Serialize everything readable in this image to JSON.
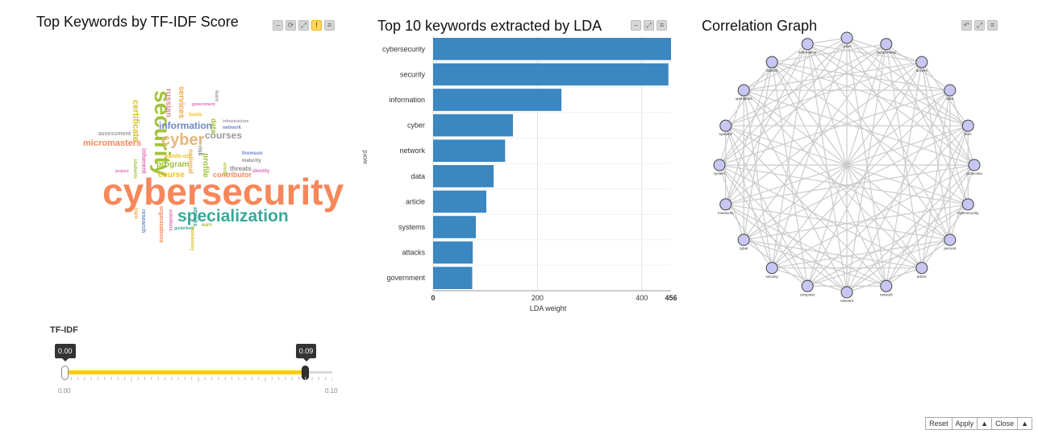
{
  "wordcloud_panel": {
    "title": "Top Keywords by TF-IDF Score",
    "words": [
      {
        "text": "cybersecurity",
        "color": "#f6875a"
      },
      {
        "text": "specialization",
        "color": "#3aa89a"
      },
      {
        "text": "security",
        "color": "#a2c23a"
      },
      {
        "text": "cyber",
        "color": "#e3b87c"
      },
      {
        "text": "information",
        "color": "#6f87c6"
      },
      {
        "text": "courses",
        "color": "#9a9a9a"
      },
      {
        "text": "micromasters",
        "color": "#f6875a"
      },
      {
        "text": "certificate",
        "color": "#d2c12e"
      },
      {
        "text": "program",
        "color": "#a2c23a"
      },
      {
        "text": "course",
        "color": "#f0c21f"
      },
      {
        "text": "russian",
        "color": "#d88a8a"
      },
      {
        "text": "services",
        "color": "#f0a94a"
      },
      {
        "text": "contributor",
        "color": "#f6875a"
      },
      {
        "text": "profile",
        "color": "#a2c23a"
      },
      {
        "text": "threats",
        "color": "#8a8a8a"
      },
      {
        "text": "assessment",
        "color": "#9a9a9a"
      },
      {
        "text": "national",
        "color": "#f0a94a"
      },
      {
        "text": "inherent",
        "color": "#e06bb0"
      },
      {
        "text": "network",
        "color": "#6f87c6"
      },
      {
        "text": "hands-on",
        "color": "#f0c21f"
      },
      {
        "text": "attacks",
        "color": "#3aa89a"
      },
      {
        "text": "research",
        "color": "#6f87c6"
      },
      {
        "text": "organizations",
        "color": "#f6875a"
      },
      {
        "text": "government",
        "color": "#e06bb0"
      },
      {
        "text": "funds",
        "color": "#f0c21f"
      },
      {
        "text": "infrastructure",
        "color": "#9a9a9a"
      },
      {
        "text": "maturity",
        "color": "#8a8a8a"
      },
      {
        "text": "identity",
        "color": "#e06bb0"
      },
      {
        "text": "students",
        "color": "#a2c23a"
      },
      {
        "text": "guidelines",
        "color": "#3aa89a"
      },
      {
        "text": "earn",
        "color": "#a2c23a"
      },
      {
        "text": "mandatory",
        "color": "#d2c12e"
      },
      {
        "text": "topic",
        "color": "#f0a94a"
      },
      {
        "text": "solutions",
        "color": "#e06bb0"
      },
      {
        "text": "data",
        "color": "#a2c23a"
      },
      {
        "text": "risk",
        "color": "#8a8a8a"
      },
      {
        "text": "learn",
        "color": "#9a9a9a"
      },
      {
        "text": "project",
        "color": "#e06bb0"
      },
      {
        "text": "thomson",
        "color": "#6f87c6"
      },
      {
        "text": "enroll",
        "color": "#a2c23a"
      }
    ]
  },
  "lda_panel": {
    "title": "Top 10 keywords extracted by LDA"
  },
  "chart_data": {
    "type": "bar",
    "orientation": "horizontal",
    "categories": [
      "cybersecurity",
      "security",
      "information",
      "cyber",
      "network",
      "data",
      "article",
      "systems",
      "attacks",
      "government"
    ],
    "values": [
      456,
      451,
      246,
      153,
      138,
      116,
      102,
      82,
      76,
      75
    ],
    "xlabel": "LDA weight",
    "ylabel": "word",
    "xlim": [
      0,
      456
    ],
    "xticks": [
      "0",
      "200",
      "400",
      "456"
    ],
    "color": "#3a87c2",
    "grid": true
  },
  "graph_panel": {
    "title": "Correlation Graph",
    "nodes": [
      "cyber",
      "departments",
      "access",
      "data",
      "tech",
      "protection",
      "cybersecurity",
      "percent",
      "article",
      "network",
      "relevant",
      "computer",
      "security",
      "cyber",
      "measures",
      "system",
      "systems",
      "operations",
      "attacks",
      "information"
    ],
    "node_fill": "#c8c6f2",
    "node_stroke": "#444444",
    "edge_color": "#cccccc"
  },
  "slider": {
    "title": "TF-IDF",
    "min_label": "0.00",
    "max_label": "0.10",
    "low_value": "0.00",
    "high_value": "0.09",
    "low_fraction": 0.0,
    "high_fraction": 0.9,
    "fill_color": "#ffcc00"
  },
  "bottom_bar": {
    "reset": "Reset",
    "apply": "Apply",
    "up1": "▲",
    "close": "Close",
    "up2": "▲"
  },
  "toolbar_icons": [
    "minimize-icon",
    "refresh-icon",
    "expand-icon",
    "warning-icon",
    "menu-icon"
  ]
}
